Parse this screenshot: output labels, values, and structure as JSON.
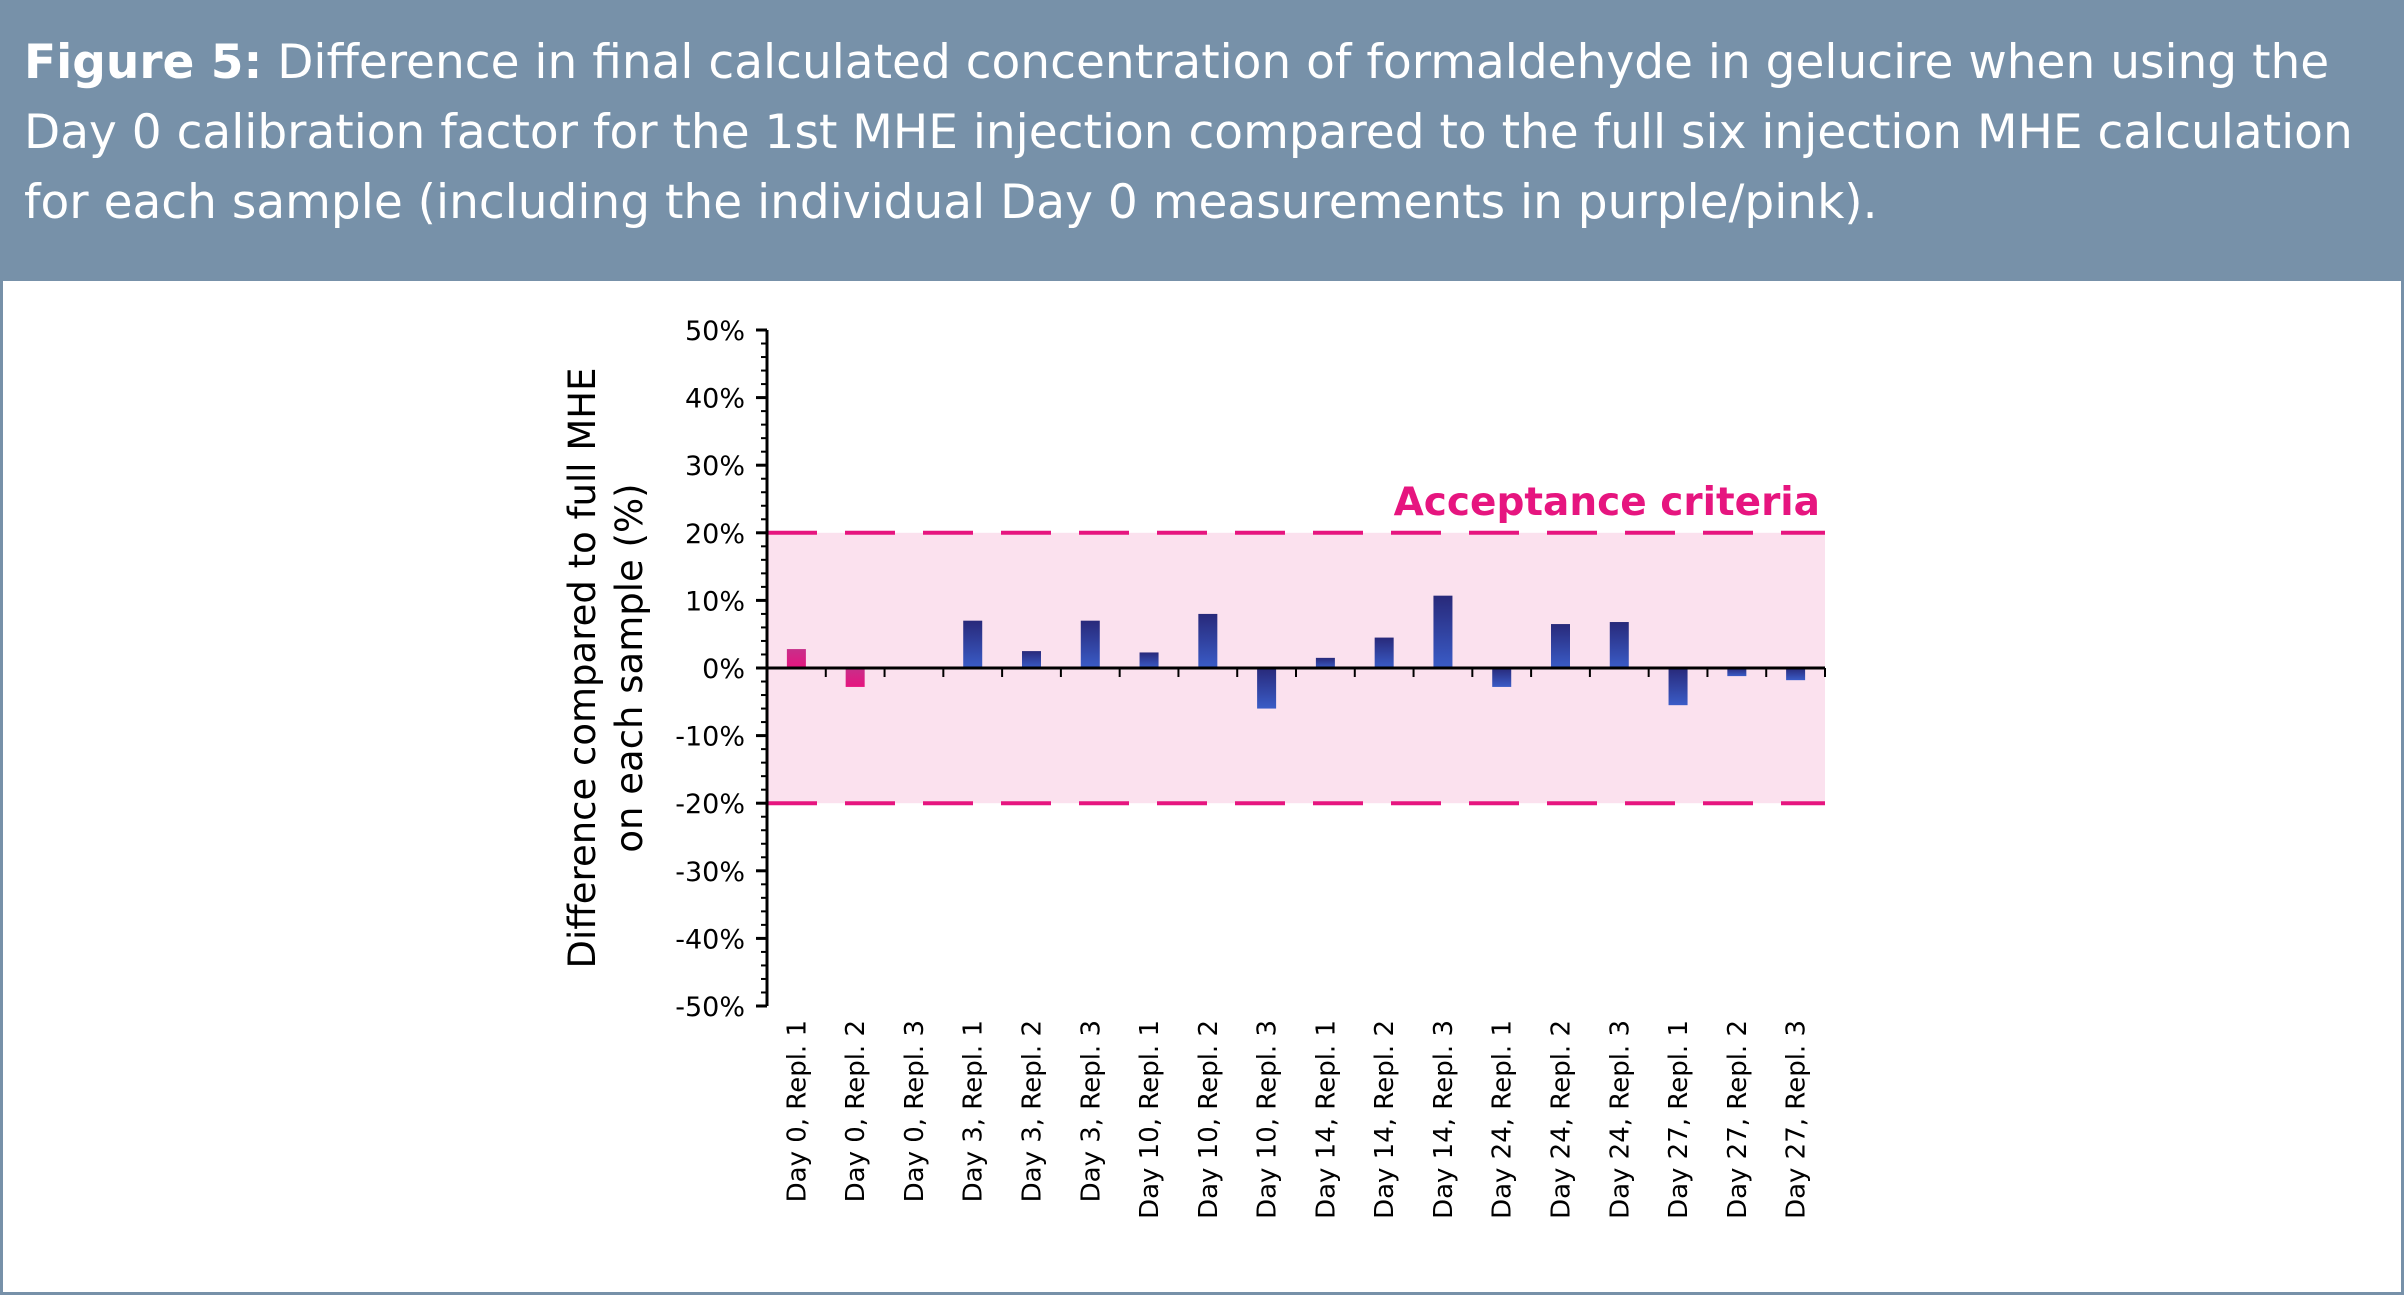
{
  "caption": {
    "label": "Figure 5:",
    "text": " Difference in final calculated concentration of formaldehyde in gelucire when using the Day 0 calibration factor for the 1st MHE injection compared to the full six injection MHE calculation for each sample (including the individual Day 0 measurements in purple/pink)."
  },
  "colors": {
    "caption_bg": "#7791a9",
    "acceptance": "#e6157f",
    "band_fill": "#fbe1ee",
    "bar_blue_top": "#28297a",
    "bar_blue_bottom": "#3a5cc7",
    "bar_pink_top": "#c72f8a",
    "bar_pink_bottom": "#e6157f"
  },
  "chart_data": {
    "type": "bar",
    "ylabel": "Difference compared to full MHE on each sample (%)",
    "ylabel_lines": [
      "Difference compared to full MHE",
      "on each sample (%)"
    ],
    "ylim": [
      -50,
      50
    ],
    "yticks": [
      50,
      40,
      30,
      20,
      10,
      0,
      -10,
      -20,
      -30,
      -40,
      -50
    ],
    "ytick_labels": [
      "50%",
      "40%",
      "30%",
      "20%",
      "10%",
      "0%",
      "-10%",
      "-20%",
      "-30%",
      "-40%",
      "-50%"
    ],
    "categories": [
      "Day 0, Repl. 1",
      "Day 0, Repl. 2",
      "Day 0, Repl. 3",
      "Day 3, Repl. 1",
      "Day 3, Repl. 2",
      "Day 3, Repl. 3",
      "Day 10, Repl. 1",
      "Day 10, Repl. 2",
      "Day 10, Repl. 3",
      "Day 14, Repl. 1",
      "Day 14, Repl. 2",
      "Day 14, Repl. 3",
      "Day 24, Repl. 1",
      "Day 24, Repl. 2",
      "Day 24, Repl. 3",
      "Day 27, Repl. 1",
      "Day 27, Repl. 2",
      "Day 27, Repl. 3"
    ],
    "values": [
      2.8,
      -2.8,
      0,
      7.0,
      2.5,
      7.0,
      2.3,
      8.0,
      -6.0,
      1.5,
      4.5,
      10.7,
      -2.8,
      6.5,
      6.8,
      -5.5,
      -1.2,
      -1.8
    ],
    "bar_groups": [
      "day0",
      "day0",
      "day0",
      "other",
      "other",
      "other",
      "other",
      "other",
      "other",
      "other",
      "other",
      "other",
      "other",
      "other",
      "other",
      "other",
      "other",
      "other"
    ],
    "acceptance": {
      "label": "Acceptance criteria",
      "upper": 20,
      "lower": -20
    },
    "grid": false,
    "legend": "none"
  }
}
